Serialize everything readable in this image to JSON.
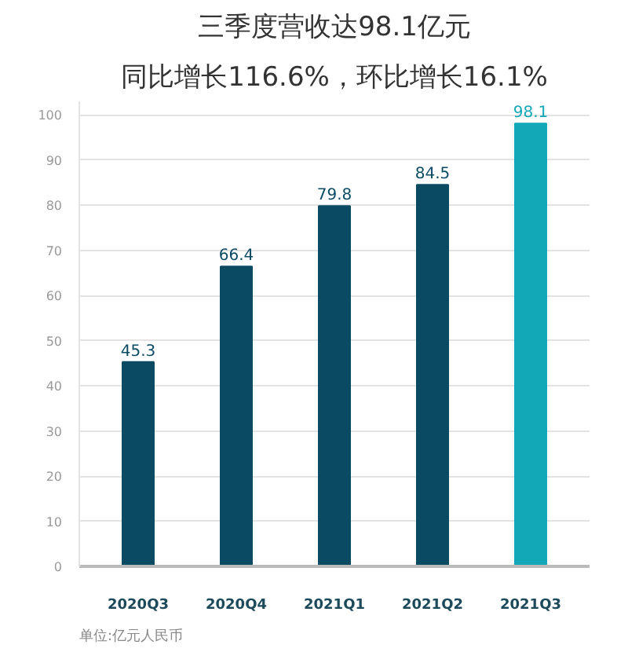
{
  "chart_data": {
    "type": "bar",
    "title": "三季度营收达98.1亿元",
    "subtitle": "同比增长116.6%，环比增长16.1%",
    "categories": [
      "2020Q3",
      "2020Q4",
      "2021Q1",
      "2021Q2",
      "2021Q3"
    ],
    "values": [
      45.3,
      66.4,
      79.8,
      84.5,
      98.1
    ],
    "colors": [
      "#0b4a63",
      "#0b4a63",
      "#0b4a63",
      "#0b4a63",
      "#13a8b8"
    ],
    "ylim": [
      0,
      103
    ],
    "yticks": [
      0,
      10,
      20,
      30,
      40,
      50,
      60,
      70,
      80,
      90,
      100
    ],
    "grid": "y",
    "data_labels": true,
    "annotations": [
      "单位:亿元人民币"
    ]
  }
}
